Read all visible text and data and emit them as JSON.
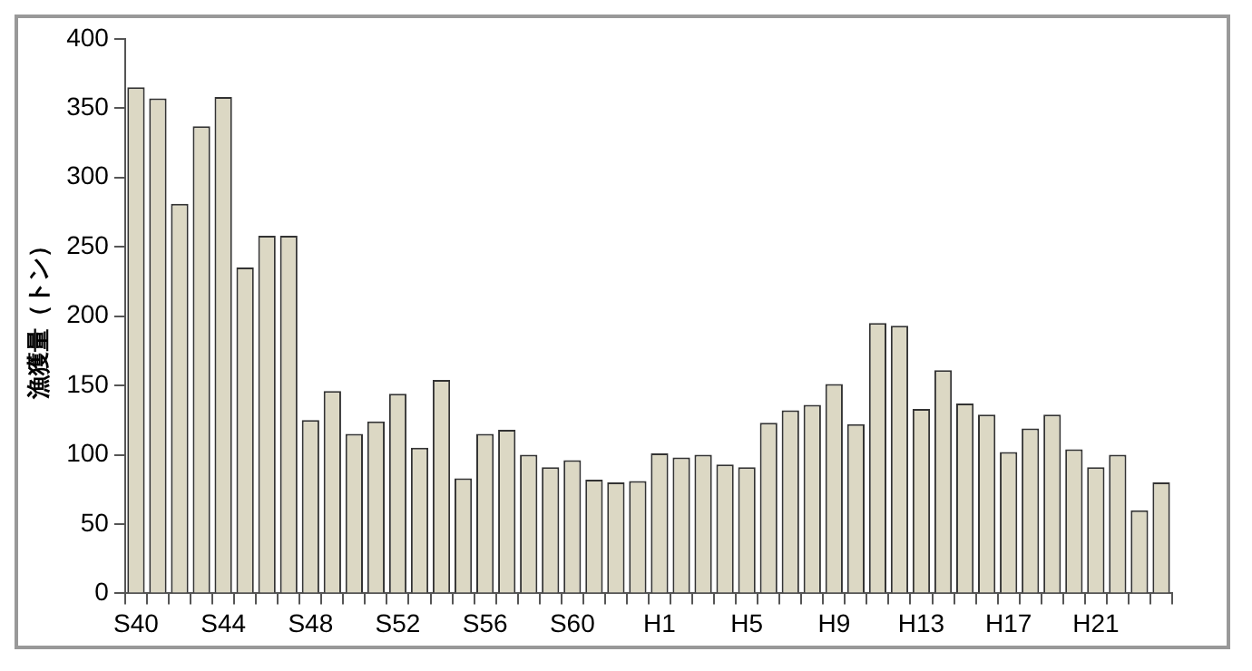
{
  "chart_data": {
    "type": "bar",
    "ylabel": "漁獲量（トン）",
    "categories": [
      "S40",
      null,
      null,
      null,
      "S44",
      null,
      null,
      null,
      "S48",
      null,
      null,
      null,
      "S52",
      null,
      null,
      null,
      "S56",
      null,
      null,
      null,
      "S60",
      null,
      null,
      null,
      "H1",
      null,
      null,
      null,
      "H5",
      null,
      null,
      null,
      "H9",
      null,
      null,
      null,
      "H13",
      null,
      null,
      null,
      "H17",
      null,
      null,
      null,
      "H21",
      null,
      null,
      null
    ],
    "values": [
      365,
      357,
      281,
      337,
      358,
      235,
      258,
      258,
      125,
      146,
      115,
      124,
      144,
      105,
      154,
      83,
      115,
      118,
      100,
      91,
      96,
      82,
      80,
      81,
      101,
      98,
      100,
      93,
      91,
      123,
      132,
      136,
      151,
      122,
      195,
      193,
      133,
      161,
      137,
      129,
      102,
      119,
      129,
      104,
      91,
      100,
      60,
      80
    ],
    "color": "#dcd8c4",
    "ylim": [
      0,
      400
    ],
    "yticks": [
      0,
      50,
      100,
      150,
      200,
      250,
      300,
      350,
      400
    ],
    "grid": false,
    "legend": false
  }
}
